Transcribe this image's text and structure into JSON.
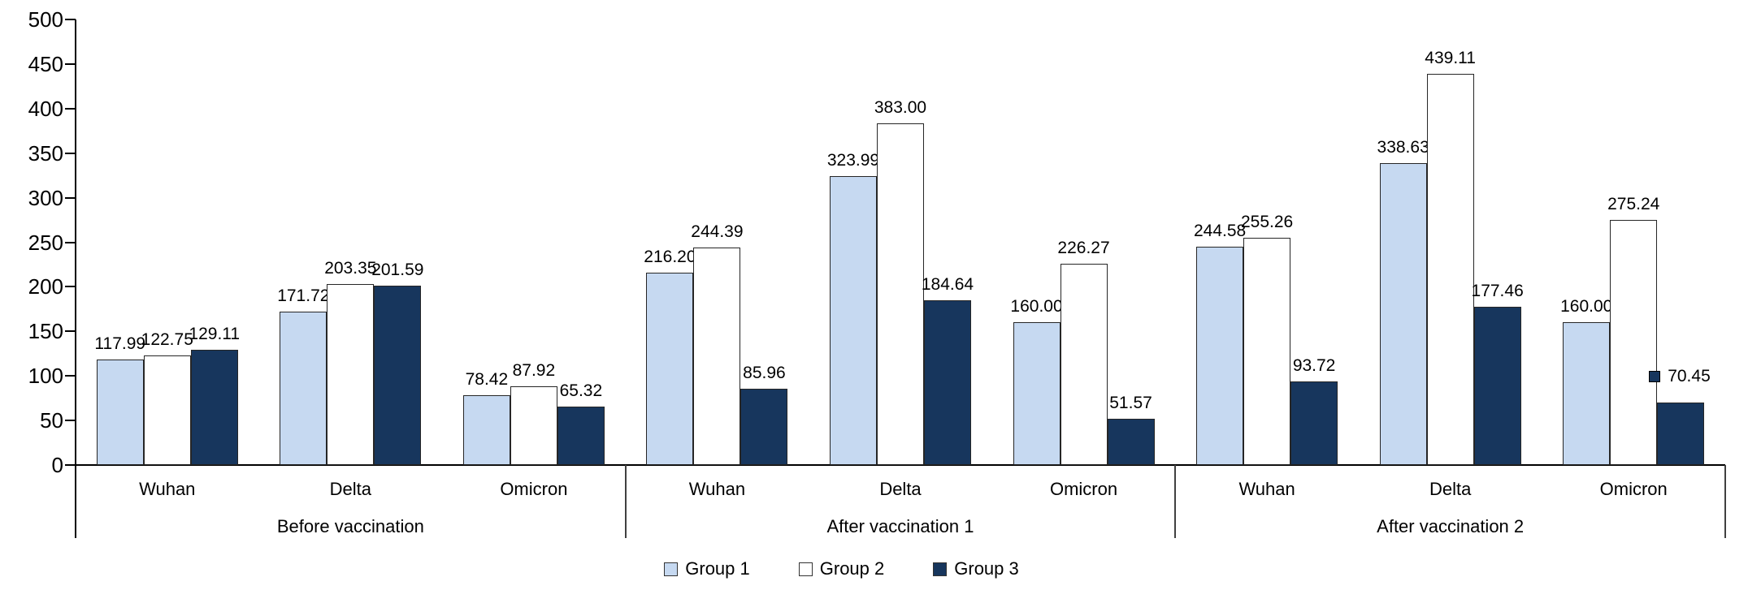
{
  "chart_data": {
    "type": "bar",
    "title": "",
    "xlabel": "",
    "ylabel": "",
    "ylim": [
      0,
      500
    ],
    "ytick_step": 50,
    "grid": false,
    "legend_position": "bottom",
    "groups": [
      "Before vaccination",
      "After vaccination 1",
      "After vaccination 2"
    ],
    "categories": [
      "Wuhan",
      "Delta",
      "Omicron"
    ],
    "series": [
      {
        "name": "Group 1",
        "color": "#C6D9F1",
        "values": [
          [
            117.99,
            171.72,
            78.42
          ],
          [
            216.2,
            323.99,
            160.0
          ],
          [
            244.58,
            338.63,
            160.0
          ]
        ]
      },
      {
        "name": "Group 2",
        "color": "#FFFFFF",
        "values": [
          [
            122.75,
            203.35,
            87.92
          ],
          [
            244.39,
            383.0,
            226.27
          ],
          [
            255.26,
            439.11,
            275.24
          ]
        ]
      },
      {
        "name": "Group 3",
        "color": "#17365D",
        "values": [
          [
            129.11,
            201.59,
            65.32
          ],
          [
            85.96,
            184.64,
            51.57
          ],
          [
            93.72,
            177.46,
            70.45
          ]
        ]
      }
    ],
    "value_label_decimals": 2,
    "special_label": {
      "series_index": 2,
      "group_index": 2,
      "category_index": 2,
      "shows_legend_key": true
    }
  }
}
